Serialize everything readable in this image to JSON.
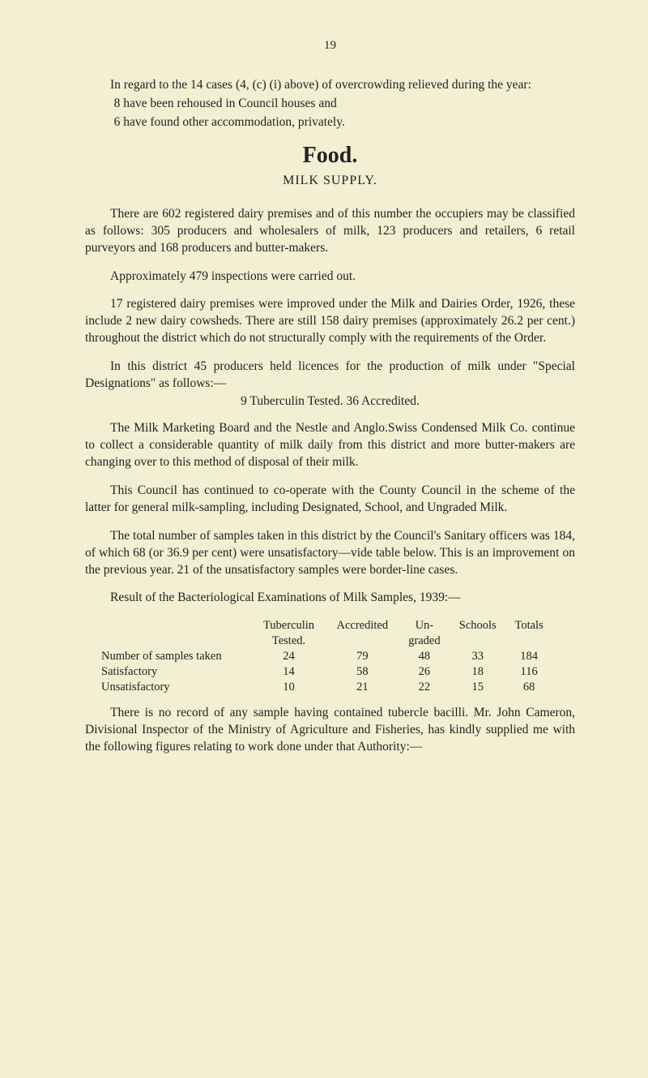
{
  "pageNumber": "19",
  "para1": "In regard to the 14 cases (4, (c) (i) above) of overcrowding relieved during the year:",
  "para1a": "8 have been rehoused in Council houses and",
  "para1b": "6 have found other accommodation, privately.",
  "heading": "Food.",
  "subheading": "MILK SUPPLY.",
  "para2": "There are 602 registered dairy premises and of this number the occupiers may be classified as follows: 305 producers and wholesalers of milk, 123 producers and retailers, 6 retail purveyors and 168 producers and butter-makers.",
  "para3": "Approximately 479 inspections were carried out.",
  "para4": "17 registered dairy premises were improved under the Milk and Dairies Order, 1926, these include 2 new dairy cowsheds. There are still 158 dairy premises (approximately 26.2 per cent.) throughout the district which do not structurally comply with the requirements of the Order.",
  "para5": "In this district 45 producers held licences for the production of milk under \"Special Designations\" as follows:—",
  "para5a": "9 Tuberculin Tested.      36 Accredited.",
  "para6": "The Milk Marketing Board and the Nestle and Anglo.Swiss Condensed Milk Co. continue to collect a considerable quantity of milk daily from this district and more butter-makers are changing over to this method of disposal of their milk.",
  "para7": "This Council has continued to co-operate with the County Council in the scheme of the latter for general milk-sampling, including Designated, School, and Ungraded Milk.",
  "para8": "The total number of samples taken in this district by the Council's Sanitary officers was 184, of which 68 (or 36.9 per cent) were unsatisfactory—vide table below. This is an improvement on the previous year. 21 of the unsatisfactory samples were border-line cases.",
  "para9": "Result of the Bacteriological Examinations of Milk Samples, 1939:—",
  "table": {
    "headers": {
      "c1": "Tuberculin",
      "c1b": "Tested.",
      "c2": "Accredited",
      "c3": "Un-",
      "c3b": "graded",
      "c4": "Schools",
      "c5": "Totals"
    },
    "rows": [
      {
        "label": "Number of samples taken",
        "c1": "24",
        "c2": "79",
        "c3": "48",
        "c4": "33",
        "c5": "184"
      },
      {
        "label": "Satisfactory",
        "c1": "14",
        "c2": "58",
        "c3": "26",
        "c4": "18",
        "c5": "116"
      },
      {
        "label": "Unsatisfactory",
        "c1": "10",
        "c2": "21",
        "c3": "22",
        "c4": "15",
        "c5": "68"
      }
    ]
  },
  "para10": "There is no record of any sample having contained tubercle bacilli. Mr. John Cameron, Divisional Inspector of the Ministry of Agriculture and Fisheries, has kindly supplied me with the following figures relating to work done under that Authority:—",
  "colors": {
    "bg": "#f3efd2",
    "text": "#222222"
  },
  "style": {
    "pageWidth": 800,
    "pageHeight": 1329,
    "bodyFontSize": 15.5,
    "headingFontSize": 28,
    "tableFontSize": 14.5
  }
}
